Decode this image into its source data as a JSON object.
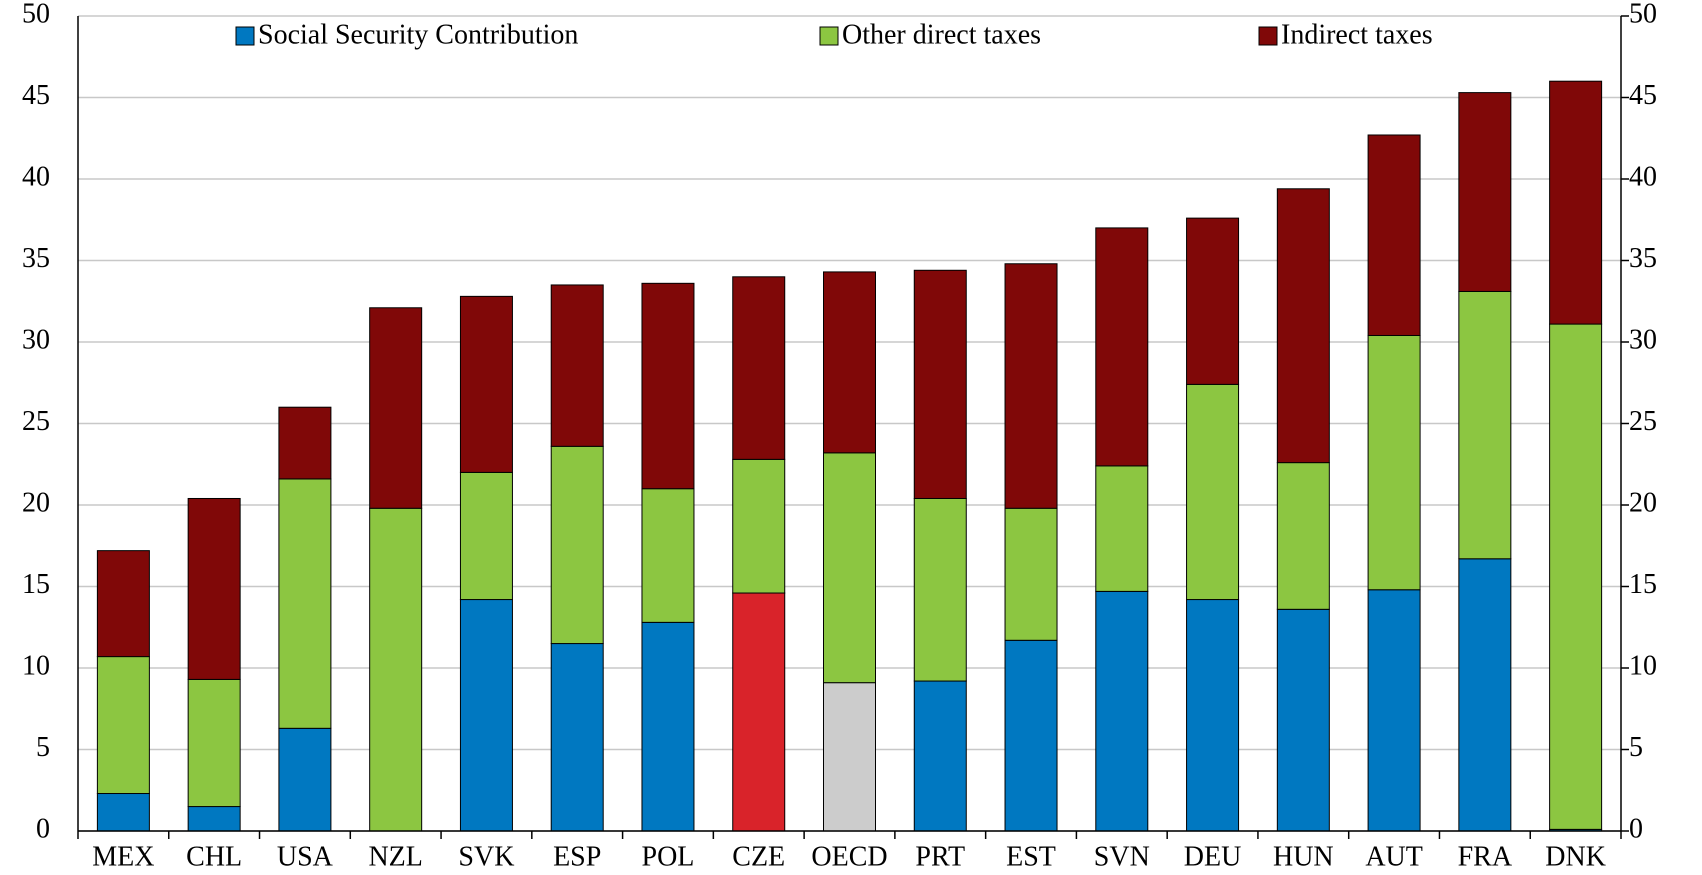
{
  "chart_data": {
    "type": "stacked_bar",
    "categories": [
      "MEX",
      "CHL",
      "USA",
      "NZL",
      "SVK",
      "ESP",
      "POL",
      "CZE",
      "OECD",
      "PRT",
      "EST",
      "SVN",
      "DEU",
      "HUN",
      "AUT",
      "FRA",
      "DNK"
    ],
    "series": [
      {
        "name": "Social Security Contribution",
        "color": "#0078c1",
        "point_colors": [
          "#0078c1",
          "#0078c1",
          "#0078c1",
          "#0078c1",
          "#0078c1",
          "#0078c1",
          "#0078c1",
          "#d9232a",
          "#cccccc",
          "#0078c1",
          "#0078c1",
          "#0078c1",
          "#0078c1",
          "#0078c1",
          "#0078c1",
          "#0078c1",
          "#0078c1"
        ],
        "values": [
          2.3,
          1.5,
          6.3,
          0,
          14.2,
          11.5,
          12.8,
          14.6,
          9.1,
          9.2,
          11.7,
          14.7,
          14.2,
          13.6,
          14.8,
          16.7,
          0.1
        ]
      },
      {
        "name": "Other direct taxes",
        "color": "#8cc641",
        "values": [
          8.4,
          7.8,
          15.3,
          19.8,
          7.8,
          12.1,
          8.2,
          8.2,
          14.1,
          11.2,
          8.1,
          7.7,
          13.2,
          9.0,
          15.6,
          16.4,
          31.0
        ]
      },
      {
        "name": "Indirect taxes",
        "color": "#800808",
        "values": [
          6.5,
          11.1,
          4.4,
          12.3,
          10.8,
          9.9,
          12.6,
          11.2,
          11.1,
          14.0,
          15.0,
          14.6,
          10.2,
          16.8,
          12.3,
          12.2,
          14.9
        ]
      }
    ],
    "ylim": [
      0,
      50
    ],
    "yticks": [
      0,
      5,
      10,
      15,
      20,
      25,
      30,
      35,
      40,
      45,
      50
    ],
    "y2lim": [
      0,
      50
    ],
    "y2ticks": [
      0,
      5,
      10,
      15,
      20,
      25,
      30,
      35,
      40,
      45,
      50
    ],
    "grid": true
  }
}
